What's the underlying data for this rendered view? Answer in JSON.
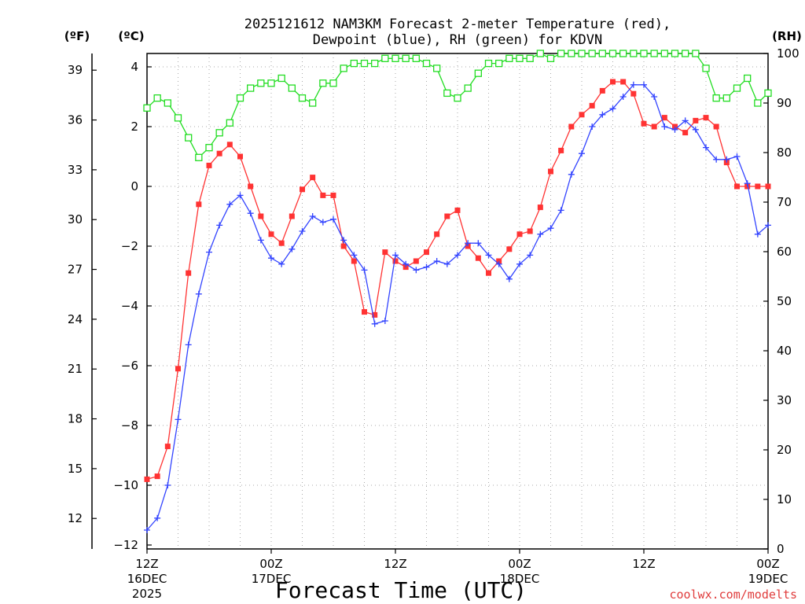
{
  "chart_data": {
    "type": "line",
    "title_line1": "2025121612 NAM3KM Forecast 2-meter Temperature (red),",
    "title_line2": "Dewpoint (blue), RH (green) for KDVN",
    "xlabel": "Forecast Time (UTC)",
    "credit": "coolwx.com/modelts",
    "units": {
      "fahrenheit": "(ºF)",
      "celsius": "(ºC)",
      "rh": "(RH)"
    },
    "x_range_hours": [
      0,
      60
    ],
    "x_ticks": [
      {
        "hour": 0,
        "line1": "12Z",
        "line2": "16DEC",
        "line3": "2025"
      },
      {
        "hour": 12,
        "line1": "00Z",
        "line2": "17DEC",
        "line3": ""
      },
      {
        "hour": 24,
        "line1": "12Z",
        "line2": "",
        "line3": ""
      },
      {
        "hour": 36,
        "line1": "00Z",
        "line2": "18DEC",
        "line3": ""
      },
      {
        "hour": 48,
        "line1": "12Z",
        "line2": "",
        "line3": ""
      },
      {
        "hour": 60,
        "line1": "00Z",
        "line2": "19DEC",
        "line3": ""
      }
    ],
    "ylim_celsius": [
      -12,
      4.5
    ],
    "yticks_celsius": [
      "4",
      "2",
      "0",
      "−2",
      "−4",
      "−6",
      "−8",
      "−10",
      "−12"
    ],
    "yticks_fahrenheit": [
      "39",
      "36",
      "33",
      "30",
      "27",
      "24",
      "21",
      "18",
      "15",
      "12"
    ],
    "ylim_rh": [
      0,
      100
    ],
    "yticks_rh": [
      "100",
      "90",
      "80",
      "70",
      "60",
      "50",
      "40",
      "30",
      "20",
      "10",
      "0"
    ],
    "series": [
      {
        "name": "Temperature",
        "units": "C",
        "color": "#ff3333",
        "marker": "filled-square",
        "x": [
          0,
          1,
          2,
          3,
          4,
          5,
          6,
          7,
          8,
          9,
          10,
          11,
          12,
          13,
          14,
          15,
          16,
          17,
          18,
          19,
          20,
          21,
          22,
          23,
          24,
          25,
          26,
          27,
          28,
          29,
          30,
          31,
          32,
          33,
          34,
          35,
          36,
          37,
          38,
          39,
          40,
          41,
          42,
          43,
          44,
          45,
          46,
          47,
          48,
          49,
          50,
          51,
          52,
          53,
          54,
          55,
          56,
          57,
          58,
          59,
          60
        ],
        "values": [
          -9.8,
          -9.7,
          -8.7,
          -6.1,
          -2.9,
          -0.6,
          0.7,
          1.1,
          1.4,
          1.0,
          0.0,
          -1.0,
          -1.6,
          -1.9,
          -1.0,
          -0.1,
          0.3,
          -0.3,
          -0.3,
          -2.0,
          -2.5,
          -4.2,
          -4.3,
          -2.2,
          -2.5,
          -2.7,
          -2.5,
          -2.2,
          -1.6,
          -1.0,
          -0.8,
          -2.0,
          -2.4,
          -2.9,
          -2.5,
          -2.1,
          -1.6,
          -1.5,
          -0.7,
          0.5,
          1.2,
          2.0,
          2.4,
          2.7,
          3.2,
          3.5,
          3.5,
          3.1,
          2.1,
          2.0,
          2.3,
          2.0,
          1.8,
          2.2,
          2.3,
          2.0,
          0.8,
          0.0,
          0.0,
          0.0,
          0.0
        ]
      },
      {
        "name": "Dewpoint",
        "units": "C",
        "color": "#3344ff",
        "marker": "plus",
        "x": [
          0,
          1,
          2,
          3,
          4,
          5,
          6,
          7,
          8,
          9,
          10,
          11,
          12,
          13,
          14,
          15,
          16,
          17,
          18,
          19,
          20,
          21,
          22,
          23,
          24,
          25,
          26,
          27,
          28,
          29,
          30,
          31,
          32,
          33,
          34,
          35,
          36,
          37,
          38,
          39,
          40,
          41,
          42,
          43,
          44,
          45,
          46,
          47,
          48,
          49,
          50,
          51,
          52,
          53,
          54,
          55,
          56,
          57,
          58,
          59,
          60
        ],
        "values": [
          -11.5,
          -11.1,
          -10.0,
          -7.8,
          -5.3,
          -3.6,
          -2.2,
          -1.3,
          -0.6,
          -0.3,
          -0.9,
          -1.8,
          -2.4,
          -2.6,
          -2.1,
          -1.5,
          -1.0,
          -1.2,
          -1.1,
          -1.8,
          -2.3,
          -2.8,
          -4.6,
          -4.5,
          -2.3,
          -2.6,
          -2.8,
          -2.7,
          -2.5,
          -2.6,
          -2.3,
          -1.9,
          -1.9,
          -2.3,
          -2.6,
          -3.1,
          -2.6,
          -2.3,
          -1.6,
          -1.4,
          -0.8,
          0.4,
          1.1,
          2.0,
          2.4,
          2.6,
          3.0,
          3.4,
          3.4,
          3.0,
          2.0,
          1.9,
          2.2,
          1.9,
          1.3,
          0.9,
          0.9,
          1.0,
          0.1,
          -1.6,
          -1.3
        ]
      },
      {
        "name": "RH",
        "units": "%",
        "color": "#22dd22",
        "marker": "open-square",
        "x": [
          0,
          1,
          2,
          3,
          4,
          5,
          6,
          7,
          8,
          9,
          10,
          11,
          12,
          13,
          14,
          15,
          16,
          17,
          18,
          19,
          20,
          21,
          22,
          23,
          24,
          25,
          26,
          27,
          28,
          29,
          30,
          31,
          32,
          33,
          34,
          35,
          36,
          37,
          38,
          39,
          40,
          41,
          42,
          43,
          44,
          45,
          46,
          47,
          48,
          49,
          50,
          51,
          52,
          53,
          54,
          55,
          56,
          57,
          58,
          59,
          60
        ],
        "values": [
          89,
          91,
          90,
          87,
          83,
          79,
          81,
          84,
          86,
          91,
          93,
          94,
          94,
          95,
          93,
          91,
          90,
          94,
          94,
          97,
          98,
          98,
          98,
          99,
          99,
          99,
          99,
          98,
          97,
          92,
          91,
          93,
          96,
          98,
          98,
          99,
          99,
          99,
          100,
          99,
          100,
          100,
          100,
          100,
          100,
          100,
          100,
          100,
          100,
          100,
          100,
          100,
          100,
          100,
          97,
          91,
          91,
          93,
          95,
          90,
          92
        ]
      }
    ]
  }
}
